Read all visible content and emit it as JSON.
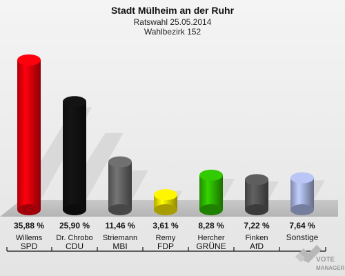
{
  "header": {
    "title": "Stadt Mülheim an der Ruhr",
    "subtitle": "Ratswahl 25.05.2014",
    "district": "Wahlbezirk 152"
  },
  "chart_data": {
    "type": "bar",
    "title": "Stadt Mülheim an der Ruhr",
    "ylim": [
      0,
      40
    ],
    "categories": [
      "SPD",
      "CDU",
      "MBI",
      "FDP",
      "GRÜNE",
      "AfD",
      "Sonstige"
    ],
    "candidates": [
      "Willems",
      "Dr. Chrobo",
      "Striemann",
      "Remy",
      "Hercher",
      "Finken",
      ""
    ],
    "values": [
      35.88,
      25.9,
      11.46,
      3.61,
      8.28,
      7.22,
      7.64
    ],
    "value_labels": [
      "35,88 %",
      "25,90 %",
      "11,46 %",
      "3,61 %",
      "8,28 %",
      "7,22 %",
      "7,64 %"
    ],
    "colors": [
      "#e8000b",
      "#111111",
      "#666666",
      "#f0e000",
      "#2db800",
      "#555555",
      "#a8b4e0"
    ]
  },
  "logo": {
    "line1": "VOTE",
    "line2": "MANAGER"
  }
}
